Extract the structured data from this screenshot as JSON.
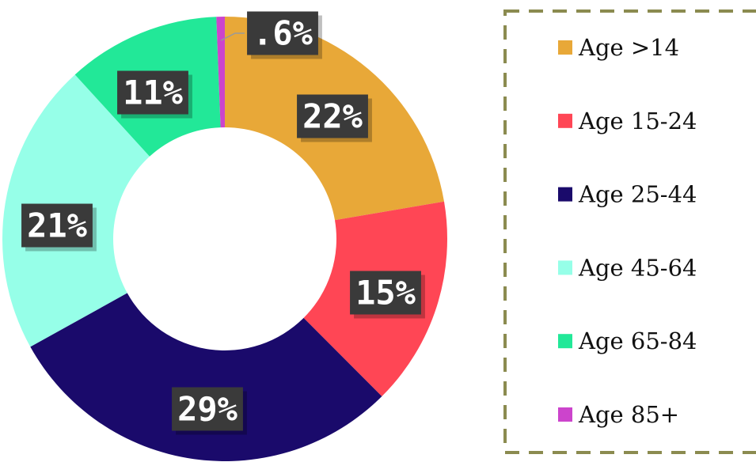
{
  "chart_data": {
    "type": "donut",
    "categories": [
      "Age >14",
      "Age 15-24",
      "Age 25-44",
      "Age 45-64",
      "Age 65-84",
      "Age 85+"
    ],
    "values": [
      22,
      15,
      29,
      21,
      11,
      0.6
    ],
    "value_labels": [
      "22%",
      "15%",
      "29%",
      "21%",
      "11%",
      ".6%"
    ],
    "colors": [
      "#e8a838",
      "#ff4655",
      "#1a0a6b",
      "#96ffe8",
      "#22e898",
      "#cc44cc"
    ],
    "legend": "right"
  }
}
